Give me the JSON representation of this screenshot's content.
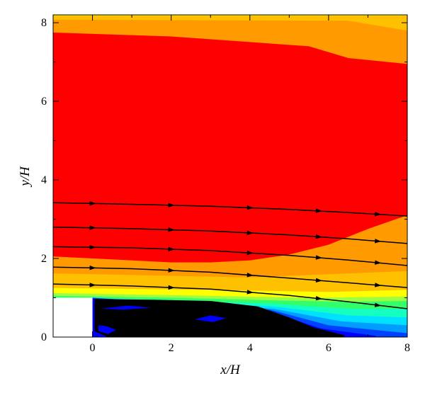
{
  "chart_data": {
    "type": "contour",
    "xlabel": "x/H",
    "ylabel": "y/H",
    "xlim": [
      -1,
      8
    ],
    "ylim": [
      0,
      8.2
    ],
    "xticks": [
      0,
      2,
      4,
      6,
      8
    ],
    "yticks": [
      0,
      2,
      4,
      6,
      8
    ],
    "grid": false,
    "legend": "none",
    "obstacle": {
      "x": [
        -1,
        0
      ],
      "y": [
        0,
        1
      ],
      "color": "#ffffff"
    },
    "colors": {
      "yellow": "#ffff00",
      "gold": "#ffc000",
      "orange": "#ff9a00",
      "dark_orange": "#ff6500",
      "red": "#ff0000",
      "lime": "#9cff40",
      "green": "#34ff6a",
      "aqua": "#14ffc0",
      "cyan": "#00e0ff",
      "sky": "#009cff",
      "azure": "#0040ff",
      "blue": "#0000ff",
      "black": "#000000"
    },
    "bands": [
      {
        "color": "yellow",
        "outline": [
          [
            -1,
            8.2
          ],
          [
            8,
            8.2
          ],
          [
            8,
            0
          ],
          [
            -1,
            0
          ]
        ]
      },
      {
        "color": "gold",
        "outline": [
          [
            -1,
            8.18
          ],
          [
            8,
            8.18
          ],
          [
            8,
            0
          ],
          [
            -1,
            0
          ]
        ]
      },
      {
        "color": "orange",
        "outline": [
          [
            -1,
            8.08
          ],
          [
            6.5,
            8.05
          ],
          [
            8,
            7.8
          ],
          [
            8,
            0
          ],
          [
            -1,
            0
          ]
        ]
      },
      {
        "color": "dark_orange",
        "outline": [
          [
            -1,
            7.75
          ],
          [
            2,
            7.65
          ],
          [
            5.5,
            7.4
          ],
          [
            6.5,
            7.1
          ],
          [
            8,
            6.95
          ],
          [
            8,
            0
          ],
          [
            -1,
            0
          ]
        ]
      },
      {
        "color": "red",
        "outline": [
          [
            -1,
            7.75
          ],
          [
            2,
            7.65
          ],
          [
            5.5,
            7.4
          ],
          [
            6.5,
            7.1
          ],
          [
            8,
            6.95
          ],
          [
            8,
            3.1
          ],
          [
            7,
            2.75
          ],
          [
            6,
            2.35
          ],
          [
            5,
            2.1
          ],
          [
            4,
            1.95
          ],
          [
            3,
            1.9
          ],
          [
            2,
            1.9
          ],
          [
            1,
            1.95
          ],
          [
            0,
            2.0
          ],
          [
            -1,
            2.05
          ]
        ]
      },
      {
        "color": "orange",
        "outline": [
          [
            -1,
            2.05
          ],
          [
            0,
            2.0
          ],
          [
            1,
            1.95
          ],
          [
            2,
            1.9
          ],
          [
            3,
            1.9
          ],
          [
            4,
            1.95
          ],
          [
            5,
            2.1
          ],
          [
            6,
            2.35
          ],
          [
            7,
            2.75
          ],
          [
            8,
            3.1
          ],
          [
            8,
            1.4
          ],
          [
            -1,
            1.4
          ]
        ]
      },
      {
        "color": "gold",
        "outline": [
          [
            -1,
            1.62
          ],
          [
            4,
            1.52
          ],
          [
            8,
            1.68
          ],
          [
            8,
            0
          ],
          [
            -1,
            0
          ]
        ]
      },
      {
        "color": "yellow",
        "outline": [
          [
            -1,
            1.25
          ],
          [
            3,
            1.2
          ],
          [
            6,
            1.15
          ],
          [
            8,
            1.2
          ],
          [
            8,
            0
          ],
          [
            -1,
            0
          ]
        ]
      },
      {
        "color": "lime",
        "outline": [
          [
            -1,
            1.12
          ],
          [
            3,
            1.05
          ],
          [
            5.5,
            1.0
          ],
          [
            8,
            1.03
          ],
          [
            8,
            0
          ],
          [
            -1,
            0
          ]
        ]
      },
      {
        "color": "green",
        "outline": [
          [
            -1,
            1.05
          ],
          [
            2,
            1.0
          ],
          [
            4.8,
            0.93
          ],
          [
            6.5,
            0.9
          ],
          [
            8,
            0.92
          ],
          [
            8,
            0
          ],
          [
            -1,
            0
          ]
        ]
      },
      {
        "color": "aqua",
        "outline": [
          [
            0,
            1.0
          ],
          [
            4.6,
            0.85
          ],
          [
            6.5,
            0.72
          ],
          [
            8,
            0.72
          ],
          [
            8,
            0
          ],
          [
            0,
            0
          ]
        ]
      },
      {
        "color": "cyan",
        "outline": [
          [
            0,
            1.0
          ],
          [
            4.6,
            0.78
          ],
          [
            6.5,
            0.55
          ],
          [
            8,
            0.5
          ],
          [
            8,
            0
          ],
          [
            0,
            0
          ]
        ]
      },
      {
        "color": "sky",
        "outline": [
          [
            0,
            1.0
          ],
          [
            4.6,
            0.72
          ],
          [
            6.3,
            0.4
          ],
          [
            8,
            0.3
          ],
          [
            8,
            0
          ],
          [
            0,
            0
          ]
        ]
      },
      {
        "color": "azure",
        "outline": [
          [
            0,
            1.0
          ],
          [
            4.5,
            0.7
          ],
          [
            6.0,
            0.3
          ],
          [
            8,
            0.1
          ],
          [
            8,
            0
          ],
          [
            0,
            0
          ]
        ]
      },
      {
        "color": "blue",
        "outline": [
          [
            0,
            0.98
          ],
          [
            4.4,
            0.68
          ],
          [
            5.8,
            0.22
          ],
          [
            7.2,
            0.03
          ],
          [
            7.2,
            0
          ],
          [
            0,
            0
          ]
        ]
      },
      {
        "color": "black",
        "outline": [
          [
            0.05,
            0.97
          ],
          [
            1.5,
            0.95
          ],
          [
            3.0,
            0.92
          ],
          [
            4.2,
            0.78
          ],
          [
            5.0,
            0.5
          ],
          [
            5.6,
            0.25
          ],
          [
            6.4,
            0.05
          ],
          [
            6.4,
            0
          ],
          [
            0.4,
            0
          ],
          [
            0.05,
            0.15
          ]
        ]
      },
      {
        "color": "blue",
        "outline": [
          [
            2.6,
            0.45
          ],
          [
            3.0,
            0.55
          ],
          [
            3.4,
            0.48
          ],
          [
            3.05,
            0.38
          ]
        ]
      },
      {
        "color": "blue",
        "outline": [
          [
            0.15,
            0.3
          ],
          [
            0.35,
            0.28
          ],
          [
            0.6,
            0.18
          ],
          [
            0.4,
            0.08
          ],
          [
            0.15,
            0.15
          ]
        ]
      },
      {
        "color": "blue",
        "outline": [
          [
            0.2,
            0.72
          ],
          [
            0.9,
            0.8
          ],
          [
            1.5,
            0.75
          ],
          [
            0.8,
            0.7
          ]
        ]
      }
    ],
    "streamlines": [
      {
        "points": [
          [
            -1,
            3.42
          ],
          [
            1,
            3.38
          ],
          [
            3,
            3.33
          ],
          [
            5,
            3.25
          ],
          [
            6.5,
            3.17
          ],
          [
            8,
            3.08
          ]
        ]
      },
      {
        "points": [
          [
            -1,
            2.8
          ],
          [
            1,
            2.76
          ],
          [
            3,
            2.7
          ],
          [
            5,
            2.6
          ],
          [
            6.5,
            2.5
          ],
          [
            8,
            2.38
          ]
        ]
      },
      {
        "points": [
          [
            -1,
            2.3
          ],
          [
            1,
            2.27
          ],
          [
            3,
            2.2
          ],
          [
            5,
            2.08
          ],
          [
            6.5,
            1.96
          ],
          [
            8,
            1.82
          ]
        ]
      },
      {
        "points": [
          [
            -1,
            1.78
          ],
          [
            1,
            1.74
          ],
          [
            3,
            1.65
          ],
          [
            5,
            1.5
          ],
          [
            6.5,
            1.38
          ],
          [
            8,
            1.26
          ]
        ]
      },
      {
        "points": [
          [
            -1,
            1.35
          ],
          [
            1,
            1.3
          ],
          [
            3,
            1.22
          ],
          [
            5,
            1.06
          ],
          [
            6.5,
            0.9
          ],
          [
            8,
            0.72
          ]
        ]
      }
    ]
  }
}
